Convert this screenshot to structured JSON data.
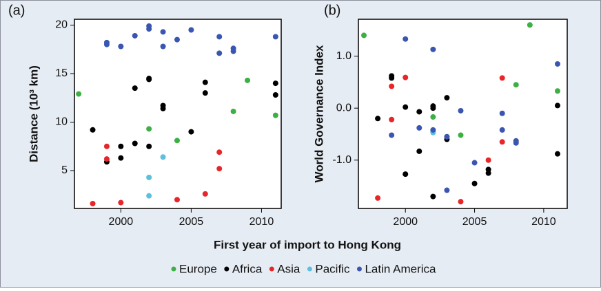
{
  "chart_data": [
    {
      "type": "scatter",
      "panel_label": "(a)",
      "y_label": "Distance (10³ km)",
      "xlim": [
        1996.7,
        2011.4
      ],
      "ylim": [
        1.1,
        20.6
      ],
      "xticks": [
        2000,
        2005,
        2010
      ],
      "yticks": [
        5,
        10,
        15,
        20
      ],
      "series": [
        {
          "name": "Europe",
          "color": "#3cb043",
          "x": [
            1997,
            2002,
            2004,
            2008,
            2009,
            2011
          ],
          "values": [
            12.9,
            9.3,
            8.1,
            11.1,
            14.3,
            10.7
          ]
        },
        {
          "name": "Africa",
          "color": "#000000",
          "x": [
            1998,
            1999,
            2000,
            2000,
            2001,
            2001,
            2002,
            2002,
            2002,
            2003,
            2003,
            2005,
            2006,
            2006,
            2011,
            2011
          ],
          "values": [
            9.2,
            5.9,
            7.5,
            6.3,
            13.5,
            7.8,
            14.5,
            14.4,
            7.5,
            11.7,
            11.4,
            9.0,
            14.1,
            13.0,
            14.0,
            12.8
          ]
        },
        {
          "name": "Asia",
          "color": "#e8262a",
          "x": [
            1998,
            1999,
            1999,
            2000,
            2004,
            2006,
            2007,
            2007
          ],
          "values": [
            1.6,
            7.5,
            6.2,
            1.7,
            2.0,
            2.6,
            6.9,
            5.2
          ]
        },
        {
          "name": "Pacific",
          "color": "#5bc0de",
          "x": [
            2002,
            2002,
            2003
          ],
          "values": [
            4.3,
            2.4,
            6.4
          ]
        },
        {
          "name": "Latin America",
          "color": "#3a56b0",
          "x": [
            1999,
            1999,
            2000,
            2001,
            2002,
            2002,
            2003,
            2003,
            2004,
            2005,
            2007,
            2007,
            2008,
            2008,
            2011
          ],
          "values": [
            18.2,
            18.0,
            17.8,
            18.9,
            19.9,
            19.6,
            19.3,
            17.8,
            18.5,
            19.5,
            18.8,
            17.1,
            17.6,
            17.3,
            18.8
          ]
        }
      ]
    },
    {
      "type": "scatter",
      "panel_label": "(b)",
      "y_label": "World Governance Index",
      "xlim": [
        1996.6,
        2011.7
      ],
      "ylim": [
        -1.93,
        1.71
      ],
      "xticks": [
        2000,
        2005,
        2010
      ],
      "yticks": [
        {
          "value": -1,
          "label": "-1.0"
        },
        {
          "value": 0,
          "label": "0.0"
        },
        {
          "value": 1,
          "label": "1.0"
        }
      ],
      "series": [
        {
          "name": "Europe",
          "color": "#3cb043",
          "x": [
            1997,
            2002,
            2004,
            2008,
            2009,
            2011
          ],
          "values": [
            1.4,
            -0.17,
            -0.52,
            0.45,
            1.6,
            0.33
          ]
        },
        {
          "name": "Africa",
          "color": "#000000",
          "x": [
            1998,
            1999,
            1999,
            2000,
            2000,
            2001,
            2001,
            2002,
            2002,
            2002,
            2003,
            2003,
            2005,
            2006,
            2006,
            2011,
            2011
          ],
          "values": [
            -0.2,
            0.62,
            0.58,
            0.02,
            -1.27,
            -0.07,
            -0.83,
            0.04,
            0.0,
            -1.7,
            0.2,
            -0.6,
            -1.45,
            -1.18,
            -1.25,
            0.05,
            -0.88
          ]
        },
        {
          "name": "Asia",
          "color": "#e8262a",
          "x": [
            1998,
            1999,
            1999,
            2000,
            2004,
            2006,
            2007,
            2007
          ],
          "values": [
            -1.73,
            0.42,
            -0.22,
            0.59,
            -1.8,
            -1.0,
            0.58,
            -0.65
          ]
        },
        {
          "name": "Pacific",
          "color": "#5bc0de",
          "x": [
            2002,
            2002,
            2003
          ],
          "values": [
            -0.45,
            -0.47,
            -0.55
          ]
        },
        {
          "name": "Latin America",
          "color": "#3a56b0",
          "x": [
            1999,
            2000,
            2001,
            2002,
            2002,
            2003,
            2003,
            2004,
            2005,
            2007,
            2007,
            2008,
            2008,
            2011
          ],
          "values": [
            -0.52,
            1.33,
            -0.38,
            1.13,
            -0.42,
            -0.55,
            -1.58,
            -0.05,
            -1.05,
            -0.1,
            -0.42,
            -0.63,
            -0.67,
            0.85
          ]
        }
      ]
    }
  ],
  "shared": {
    "x_label": "First year of import to Hong Kong"
  }
}
